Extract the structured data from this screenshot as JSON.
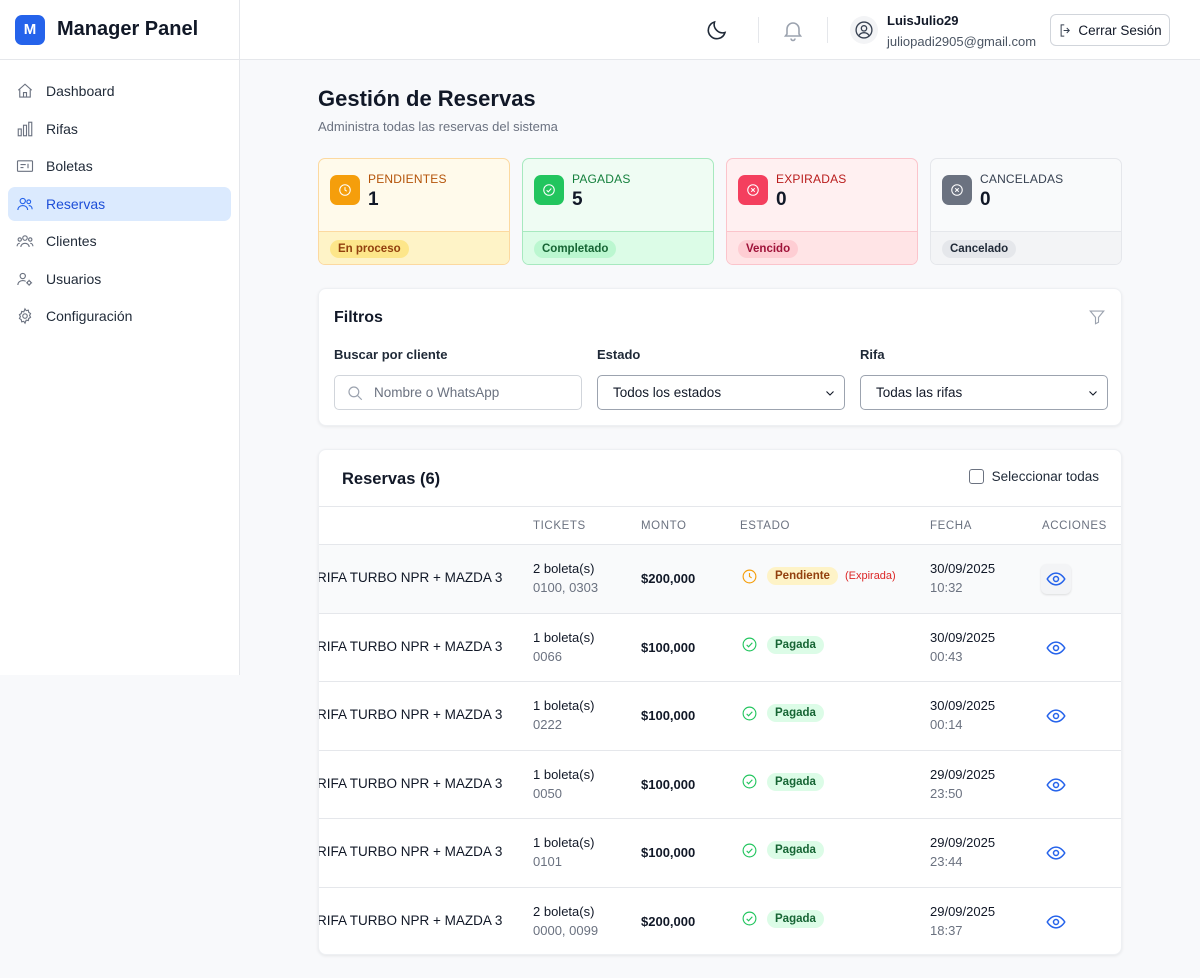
{
  "brand": {
    "logo_letter": "M",
    "title": "Manager Panel"
  },
  "sidebar": {
    "items": [
      {
        "label": "Dashboard",
        "icon": "home-icon"
      },
      {
        "label": "Rifas",
        "icon": "bar-chart-icon"
      },
      {
        "label": "Boletas",
        "icon": "ticket-icon"
      },
      {
        "label": "Reservas",
        "icon": "users-icon",
        "active": true
      },
      {
        "label": "Clientes",
        "icon": "users-group-icon"
      },
      {
        "label": "Usuarios",
        "icon": "user-cog-icon"
      },
      {
        "label": "Configuración",
        "icon": "settings-icon"
      }
    ]
  },
  "header": {
    "user_name": "LuisJulio29",
    "user_email": "juliopadi2905@gmail.com",
    "logout_label": "Cerrar Sesión"
  },
  "page": {
    "title": "Gestión de Reservas",
    "subtitle": "Administra todas las reservas del sistema"
  },
  "stats": [
    {
      "label": "PENDIENTES",
      "value": "1",
      "badge": "En proceso",
      "icon": "clock-icon",
      "accent": "#f59e0b",
      "bg": "#fffaeb",
      "border": "#fcd9a0",
      "label_color": "#b45309",
      "badge_bg": "#fde68a",
      "badge_color": "#92400e",
      "bottom_bg": "#fef3c7"
    },
    {
      "label": "PAGADAS",
      "value": "5",
      "badge": "Completado",
      "icon": "check-circle-icon",
      "accent": "#22c55e",
      "bg": "#effcf3",
      "border": "#a7e9bf",
      "label_color": "#15803d",
      "badge_bg": "#bbf7d0",
      "badge_color": "#166534",
      "bottom_bg": "#dcfce7"
    },
    {
      "label": "EXPIRADAS",
      "value": "0",
      "badge": "Vencido",
      "icon": "x-circle-icon",
      "accent": "#f43f5e",
      "bg": "#fff0f1",
      "border": "#fbc4cb",
      "label_color": "#b91c1c",
      "badge_bg": "#fecdd3",
      "badge_color": "#9f1239",
      "bottom_bg": "#ffe4e6"
    },
    {
      "label": "CANCELADAS",
      "value": "0",
      "badge": "Cancelado",
      "icon": "x-circle-icon",
      "accent": "#6b7280",
      "bg": "#f9fafb",
      "border": "#e5e7eb",
      "label_color": "#374151",
      "badge_bg": "#e5e7eb",
      "badge_color": "#1f2937",
      "bottom_bg": "#f3f4f6"
    }
  ],
  "filters": {
    "title": "Filtros",
    "search_label": "Buscar por cliente",
    "search_placeholder": "Nombre o WhatsApp",
    "estado_label": "Estado",
    "estado_value": "Todos los estados",
    "rifa_label": "Rifa",
    "rifa_value": "Todas las rifas"
  },
  "table": {
    "title": "Reservas (6)",
    "select_all_label": "Seleccionar todas",
    "columns": {
      "tickets": "TICKETS",
      "monto": "MONTO",
      "estado": "ESTADO",
      "fecha": "FECHA",
      "acciones": "ACCIONES"
    },
    "rows": [
      {
        "rifa": "RIFA TURBO NPR + MAZDA 3",
        "tickets_count": "2 boleta(s)",
        "tickets_nums": "0100, 0303",
        "monto": "$200,000",
        "estado": "Pendiente",
        "estado_type": "pending",
        "note": "(Expirada)",
        "fecha": "30/09/2025",
        "hora": "10:32"
      },
      {
        "rifa": "RIFA TURBO NPR + MAZDA 3",
        "tickets_count": "1 boleta(s)",
        "tickets_nums": "0066",
        "monto": "$100,000",
        "estado": "Pagada",
        "estado_type": "paid",
        "note": "",
        "fecha": "30/09/2025",
        "hora": "00:43"
      },
      {
        "rifa": "RIFA TURBO NPR + MAZDA 3",
        "tickets_count": "1 boleta(s)",
        "tickets_nums": "0222",
        "monto": "$100,000",
        "estado": "Pagada",
        "estado_type": "paid",
        "note": "",
        "fecha": "30/09/2025",
        "hora": "00:14"
      },
      {
        "rifa": "RIFA TURBO NPR + MAZDA 3",
        "tickets_count": "1 boleta(s)",
        "tickets_nums": "0050",
        "monto": "$100,000",
        "estado": "Pagada",
        "estado_type": "paid",
        "note": "",
        "fecha": "29/09/2025",
        "hora": "23:50"
      },
      {
        "rifa": "RIFA TURBO NPR + MAZDA 3",
        "tickets_count": "1 boleta(s)",
        "tickets_nums": "0101",
        "monto": "$100,000",
        "estado": "Pagada",
        "estado_type": "paid",
        "note": "",
        "fecha": "29/09/2025",
        "hora": "23:44"
      },
      {
        "rifa": "RIFA TURBO NPR + MAZDA 3",
        "tickets_count": "2 boleta(s)",
        "tickets_nums": "0000, 0099",
        "monto": "$200,000",
        "estado": "Pagada",
        "estado_type": "paid",
        "note": "",
        "fecha": "29/09/2025",
        "hora": "18:37"
      }
    ]
  },
  "colors": {
    "primary": "#2563eb",
    "pending": "#f59e0b",
    "paid": "#22c55e"
  }
}
